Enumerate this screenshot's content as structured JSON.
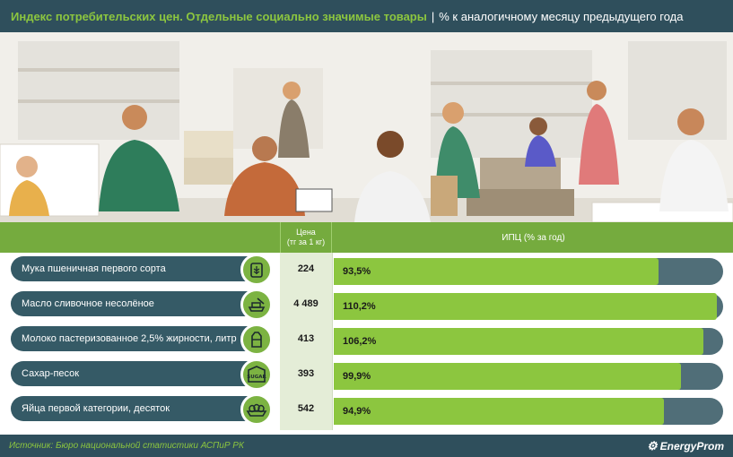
{
  "header": {
    "title": "Индекс потребительских цен. Отдельные социально значимые товары",
    "separator": "|",
    "subtitle": "% к аналогичному месяцу предыдущего года"
  },
  "table": {
    "price_header_line1": "Цена",
    "price_header_line2": "(тг за 1 кг)",
    "ipc_header": "ИПЦ (% за год)"
  },
  "chart_data": {
    "type": "bar",
    "orientation": "horizontal",
    "categories": [
      "Мука пшеничная первого сорта",
      "Масло сливочное несолёное",
      "Молоко пастеризованное 2,5% жирности, литр",
      "Сахар-песок",
      "Яйца первой категории, десяток"
    ],
    "prices": [
      "224",
      "4 489",
      "413",
      "393",
      "542"
    ],
    "values": [
      93.5,
      110.2,
      106.2,
      99.9,
      94.9
    ],
    "value_labels": [
      "93,5%",
      "110,2%",
      "106,2%",
      "99,9%",
      "94,9%"
    ],
    "icons": [
      "wheat-icon",
      "butter-icon",
      "milk-icon",
      "sugar-icon",
      "eggs-icon"
    ],
    "xlim": [
      0,
      112
    ],
    "colors": {
      "bar": "#8cc63f",
      "track": "#506e78",
      "label": "#355a66"
    }
  },
  "icon_texts": {
    "sugar": "SUGAR"
  },
  "footer": {
    "source": "Источник: Бюро национальной статистики АСПиР РК",
    "brand": "EnergyProm"
  }
}
